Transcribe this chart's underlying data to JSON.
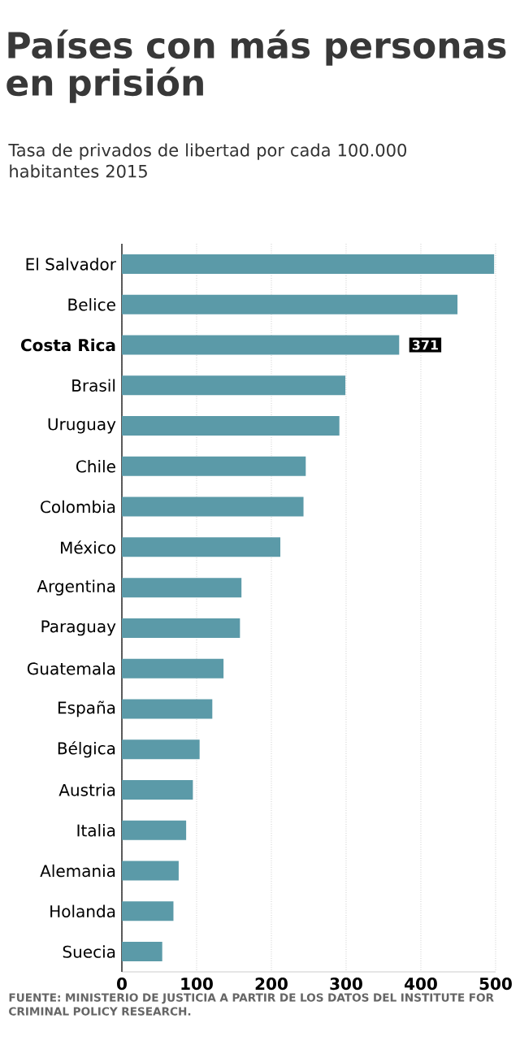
{
  "chart_data": {
    "type": "bar",
    "orientation": "horizontal",
    "title": "Países con más personas en prisión",
    "subtitle": "Tasa de privados de libertad por cada 100.000 habitantes 2015",
    "categories": [
      "El Salvador",
      "Belice",
      "Costa Rica",
      "Brasil",
      "Uruguay",
      "Chile",
      "Colombia",
      "México",
      "Argentina",
      "Paraguay",
      "Guatemala",
      "España",
      "Bélgica",
      "Austria",
      "Italia",
      "Alemania",
      "Holanda",
      "Suecia"
    ],
    "values": [
      498,
      449,
      371,
      299,
      291,
      246,
      243,
      212,
      160,
      158,
      136,
      121,
      104,
      95,
      86,
      76,
      69,
      54
    ],
    "value_labels": [
      null,
      null,
      "371",
      null,
      null,
      null,
      null,
      null,
      null,
      null,
      null,
      null,
      null,
      null,
      null,
      null,
      null,
      null
    ],
    "color": "#5b9aa8",
    "xlim": [
      0,
      500
    ],
    "xticks": [
      0,
      100,
      200,
      300,
      400,
      500
    ],
    "grid": "x",
    "annotations": [
      "FUENTE: MINISTERIO DE JUSTICIA A PARTIR DE LOS DATOS DEL INSTITUTE FOR CRIMINAL POLICY RESEARCH."
    ]
  }
}
